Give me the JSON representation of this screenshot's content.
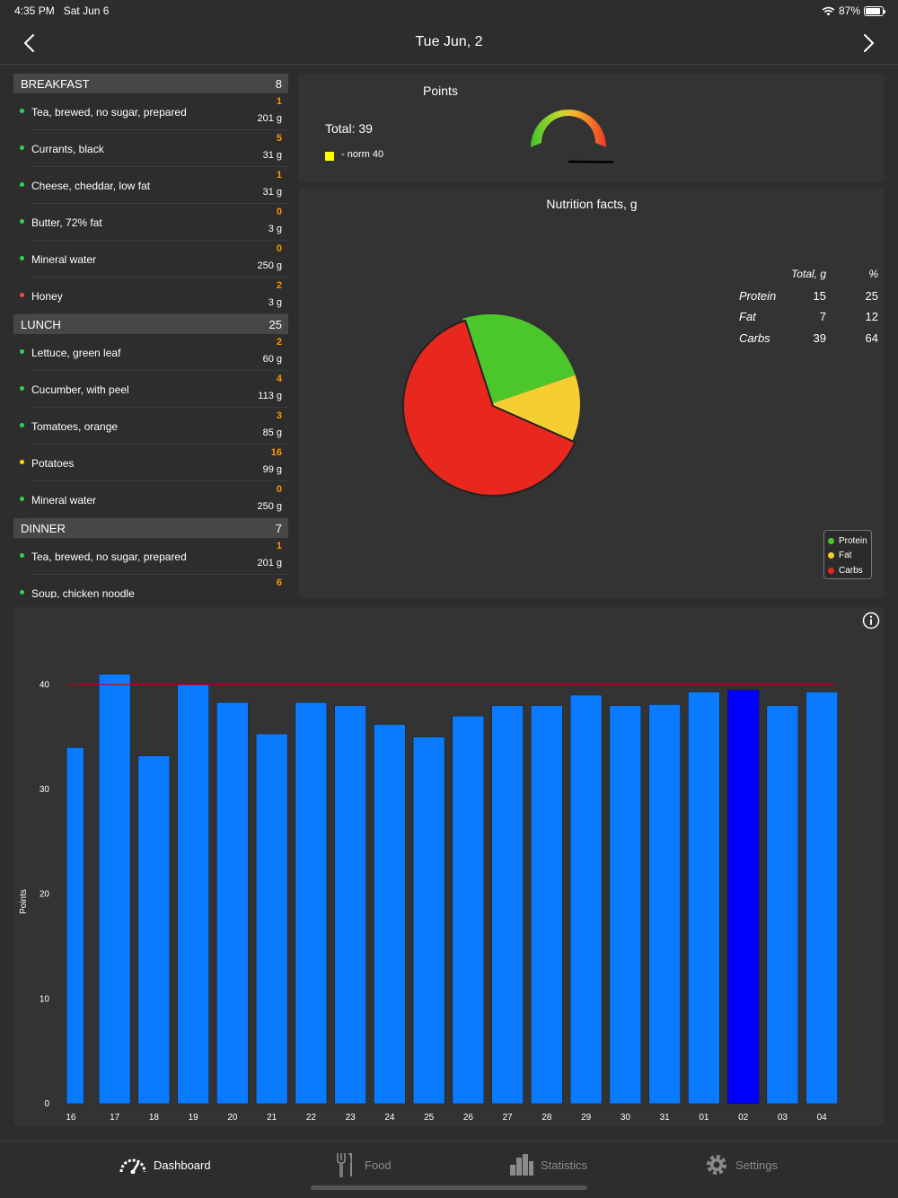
{
  "status": {
    "time": "4:35 PM",
    "date": "Sat Jun 6",
    "battery": "87%",
    "battery_level": 0.87
  },
  "nav": {
    "title": "Tue  Jun, 2"
  },
  "meals": [
    {
      "name": "BREAKFAST",
      "points": "8",
      "items": [
        {
          "name": "Tea, brewed, no sugar, prepared",
          "points": "1",
          "grams": "201 g",
          "dot": "#30d158"
        },
        {
          "name": "Currants, black",
          "points": "5",
          "grams": "31 g",
          "dot": "#30d158"
        },
        {
          "name": "Cheese, cheddar, low fat",
          "points": "1",
          "grams": "31 g",
          "dot": "#30d158"
        },
        {
          "name": "Butter, 72% fat",
          "points": "0",
          "grams": "3 g",
          "dot": "#30d158"
        },
        {
          "name": "Mineral water",
          "points": "0",
          "grams": "250 g",
          "dot": "#30d158"
        },
        {
          "name": "Honey",
          "points": "2",
          "grams": "3 g",
          "dot": "#ff453a"
        }
      ]
    },
    {
      "name": "LUNCH",
      "points": "25",
      "items": [
        {
          "name": "Lettuce, green leaf",
          "points": "2",
          "grams": "60 g",
          "dot": "#30d158"
        },
        {
          "name": "Cucumber, with peel",
          "points": "4",
          "grams": "113 g",
          "dot": "#30d158"
        },
        {
          "name": "Tomatoes, orange",
          "points": "3",
          "grams": "85 g",
          "dot": "#30d158"
        },
        {
          "name": "Potatoes",
          "points": "16",
          "grams": "99 g",
          "dot": "#ffd60a"
        },
        {
          "name": "Mineral water",
          "points": "0",
          "grams": "250 g",
          "dot": "#30d158"
        }
      ]
    },
    {
      "name": "DINNER",
      "points": "7",
      "items": [
        {
          "name": "Tea, brewed, no sugar, prepared",
          "points": "1",
          "grams": "201 g",
          "dot": "#30d158"
        },
        {
          "name": "Soup, chicken noodle",
          "points": "6",
          "grams": "",
          "dot": "#30d158"
        }
      ]
    }
  ],
  "points": {
    "title": "Points",
    "total": "Total: 39",
    "norm": "- norm 40",
    "total_value": 39,
    "norm_value": 40
  },
  "nutrition": {
    "title": "Nutrition facts, g",
    "headers": {
      "total": "Total, g",
      "percent": "%"
    },
    "rows": [
      {
        "name": "Protein",
        "total": "15",
        "percent": "25",
        "color": "#4cc72b"
      },
      {
        "name": "Fat",
        "total": "7",
        "percent": "12",
        "color": "#f5cf32"
      },
      {
        "name": "Carbs",
        "total": "39",
        "percent": "64",
        "color": "#e8281e"
      }
    ]
  },
  "chart_data": {
    "type": "bar",
    "categories": [
      "16",
      "17",
      "18",
      "19",
      "20",
      "21",
      "22",
      "23",
      "24",
      "25",
      "26",
      "27",
      "28",
      "29",
      "30",
      "31",
      "01",
      "02",
      "03",
      "04"
    ],
    "values": [
      34,
      41,
      33.2,
      40,
      38.3,
      35.3,
      38.3,
      38,
      36.2,
      35,
      37,
      38,
      38,
      39,
      38,
      38.1,
      39.3,
      39.5,
      38,
      39.3
    ],
    "highlight_index": 17,
    "reference_line": 40,
    "ylabel": "Points",
    "ylim": [
      0,
      42
    ],
    "yticks": [
      0,
      10,
      20,
      30,
      40
    ],
    "bar_color": "#0a7aff",
    "highlight_color": "#0000ff",
    "reference_color": "#c0001a"
  },
  "tabs": [
    {
      "label": "Dashboard",
      "icon": "gauge-icon",
      "active": true
    },
    {
      "label": "Food",
      "icon": "fork-knife-icon",
      "active": false
    },
    {
      "label": "Statistics",
      "icon": "bar-chart-icon",
      "active": false
    },
    {
      "label": "Settings",
      "icon": "gear-icon",
      "active": false
    }
  ]
}
